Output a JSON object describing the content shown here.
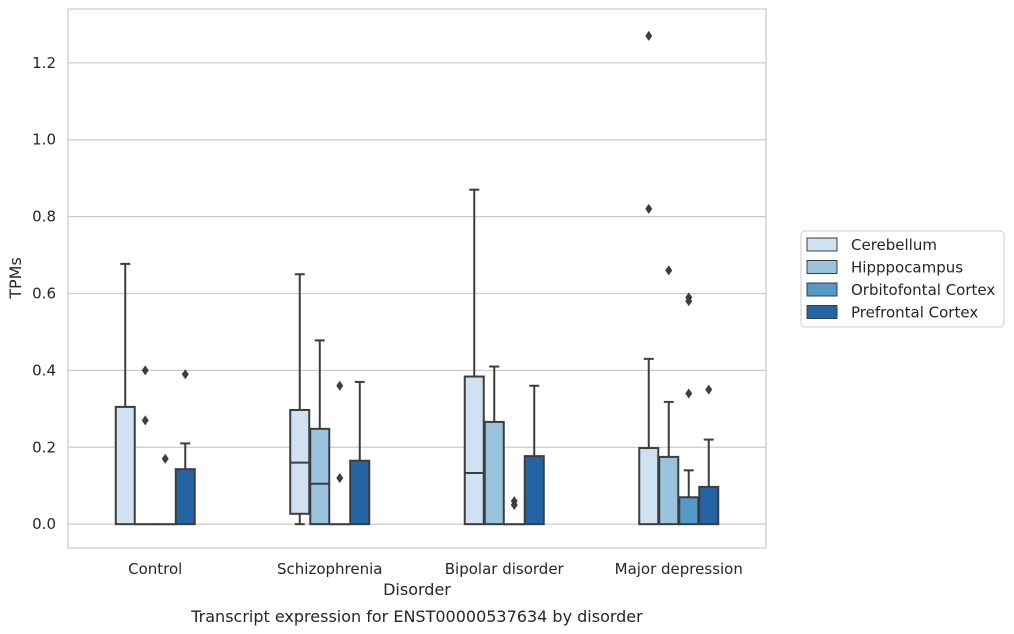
{
  "chart_data": {
    "type": "box",
    "caption": "Transcript expression for ENST00000537634 by disorder",
    "xlabel": "Disorder",
    "ylabel": "TPMs",
    "ylim": [
      -0.062,
      1.34
    ],
    "yticks": [
      0.0,
      0.2,
      0.4,
      0.6,
      0.8,
      1.0,
      1.2
    ],
    "ytick_labels": [
      "0.0",
      "0.2",
      "0.4",
      "0.6",
      "0.8",
      "1.0",
      "1.2"
    ],
    "categories": [
      "Control",
      "Schizophrenia",
      "Bipolar disorder",
      "Major depression"
    ],
    "grid": "horizontal",
    "legend_position": "right",
    "series": [
      {
        "name": "Cerebellum",
        "color": "#d0e1f2",
        "boxes": [
          {
            "whislo": 0.0,
            "q1": 0.0,
            "med": 0.0,
            "q3": 0.305,
            "whishi": 0.677,
            "fliers": []
          },
          {
            "whislo": 0.0,
            "q1": 0.027,
            "med": 0.16,
            "q3": 0.297,
            "whishi": 0.65,
            "fliers": []
          },
          {
            "whislo": 0.0,
            "q1": 0.0,
            "med": 0.133,
            "q3": 0.384,
            "whishi": 0.87,
            "fliers": []
          },
          {
            "whislo": 0.0,
            "q1": 0.0,
            "med": 0.0,
            "q3": 0.198,
            "whishi": 0.43,
            "fliers": [
              0.82,
              1.27
            ]
          }
        ]
      },
      {
        "name": "Hipppocampus",
        "color": "#9ac3dd",
        "boxes": [
          {
            "whislo": 0.0,
            "q1": 0.0,
            "med": 0.0,
            "q3": 0.0,
            "whishi": 0.0,
            "fliers": [
              0.27,
              0.4
            ]
          },
          {
            "whislo": 0.0,
            "q1": 0.0,
            "med": 0.105,
            "q3": 0.248,
            "whishi": 0.478,
            "fliers": []
          },
          {
            "whislo": 0.0,
            "q1": 0.0,
            "med": 0.0,
            "q3": 0.266,
            "whishi": 0.41,
            "fliers": []
          },
          {
            "whislo": 0.0,
            "q1": 0.0,
            "med": 0.0,
            "q3": 0.175,
            "whishi": 0.318,
            "fliers": [
              0.66
            ]
          }
        ]
      },
      {
        "name": "Orbitofontal Cortex",
        "color": "#5499c7",
        "boxes": [
          {
            "whislo": 0.0,
            "q1": 0.0,
            "med": 0.0,
            "q3": 0.0,
            "whishi": 0.0,
            "fliers": [
              0.17
            ]
          },
          {
            "whislo": 0.0,
            "q1": 0.0,
            "med": 0.0,
            "q3": 0.0,
            "whishi": 0.0,
            "fliers": [
              0.12,
              0.36
            ]
          },
          {
            "whislo": 0.0,
            "q1": 0.0,
            "med": 0.0,
            "q3": 0.0,
            "whishi": 0.0,
            "fliers": [
              0.05,
              0.06
            ]
          },
          {
            "whislo": 0.0,
            "q1": 0.0,
            "med": 0.0,
            "q3": 0.07,
            "whishi": 0.14,
            "fliers": [
              0.34,
              0.58,
              0.59
            ]
          }
        ]
      },
      {
        "name": "Prefrontal Cortex",
        "color": "#2464a4",
        "boxes": [
          {
            "whislo": 0.0,
            "q1": 0.0,
            "med": 0.0,
            "q3": 0.143,
            "whishi": 0.21,
            "fliers": [
              0.39
            ]
          },
          {
            "whislo": 0.0,
            "q1": 0.0,
            "med": 0.0,
            "q3": 0.165,
            "whishi": 0.37,
            "fliers": []
          },
          {
            "whislo": 0.0,
            "q1": 0.0,
            "med": 0.0,
            "q3": 0.177,
            "whishi": 0.36,
            "fliers": []
          },
          {
            "whislo": 0.0,
            "q1": 0.0,
            "med": 0.0,
            "q3": 0.097,
            "whishi": 0.22,
            "fliers": [
              0.35
            ]
          }
        ]
      }
    ]
  }
}
